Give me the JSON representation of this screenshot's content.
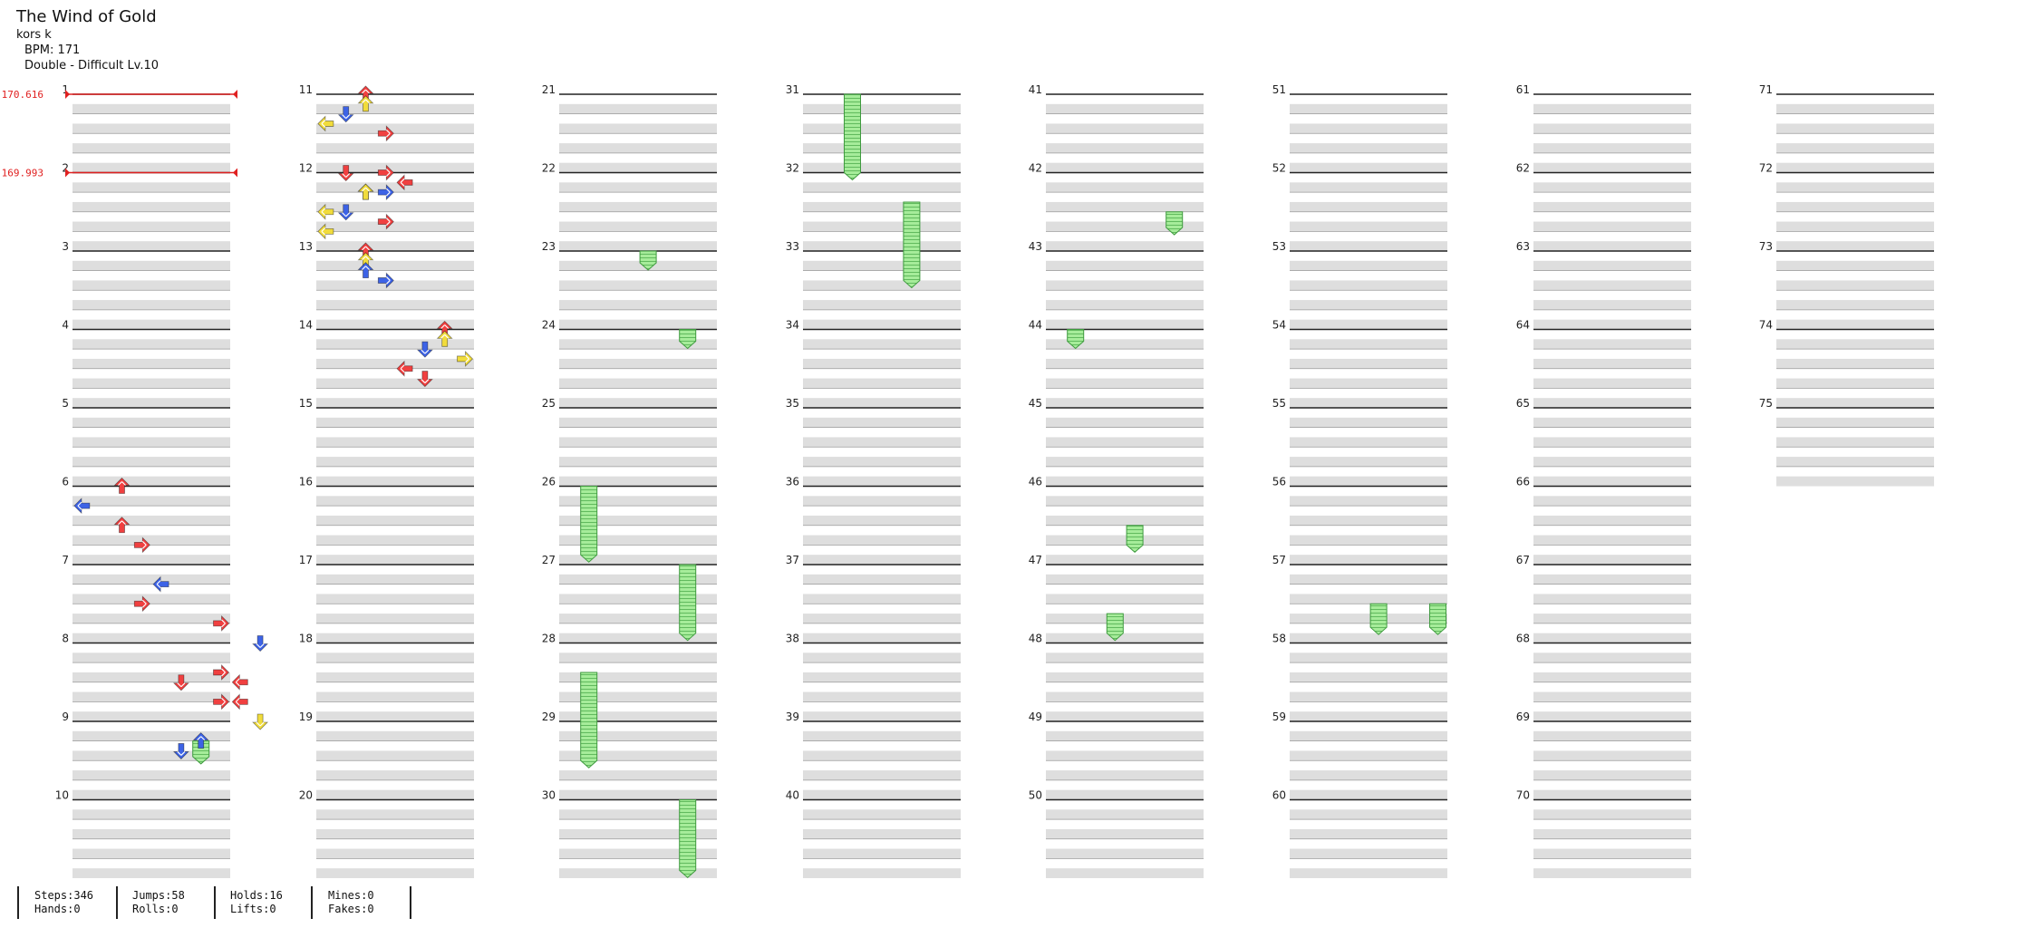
{
  "song": {
    "title": "The Wind of Gold",
    "artist": "kors k",
    "bpm_text": "BPM: 171",
    "difficulty_text": "Double - Difficult Lv.10"
  },
  "bpm_changes": [
    {
      "measure": 1,
      "value": "170.616"
    },
    {
      "measure": 2,
      "value": "169.993"
    }
  ],
  "colors": {
    "red_note": "#f04040",
    "blue_note": "#3d63e6",
    "yellow_note": "#f1dc3c",
    "hold_green": "#8fe08f",
    "bpm_marker": "#e02020",
    "row_gray": "#dedede"
  },
  "icons": [
    "left-arrow-icon",
    "down-arrow-icon",
    "up-arrow-icon",
    "right-arrow-icon",
    "hold-note-icon"
  ],
  "chart": {
    "total_measures": 75,
    "columns": 8,
    "measures_per_column": 10,
    "panels_per_measure": 10,
    "beats_per_measure": 4,
    "notes": [
      {
        "m": 6,
        "b": 0,
        "l": 3,
        "c": "red"
      },
      {
        "m": 6,
        "b": 1,
        "l": 1,
        "c": "blue"
      },
      {
        "m": 6,
        "b": 2,
        "l": 3,
        "c": "red"
      },
      {
        "m": 6,
        "b": 3,
        "l": 4,
        "c": "red"
      },
      {
        "m": 7,
        "b": 1,
        "l": 5,
        "c": "blue"
      },
      {
        "m": 7,
        "b": 2,
        "l": 4,
        "c": "red"
      },
      {
        "m": 7,
        "b": 3,
        "l": 8,
        "c": "red"
      },
      {
        "m": 8,
        "b": 0,
        "l": 10,
        "c": "blue"
      },
      {
        "m": 8,
        "b": 1.5,
        "l": 8,
        "c": "red"
      },
      {
        "m": 8,
        "b": 2,
        "l": 6,
        "c": "red"
      },
      {
        "m": 8,
        "b": 2,
        "l": 9,
        "c": "red"
      },
      {
        "m": 8,
        "b": 3,
        "l": 8,
        "c": "red"
      },
      {
        "m": 8,
        "b": 3,
        "l": 9,
        "c": "red"
      },
      {
        "m": 9,
        "b": 0,
        "l": 10,
        "c": "yellow"
      },
      {
        "m": 9,
        "b": 1,
        "l": 7,
        "c": "blue"
      },
      {
        "m": 9,
        "b": 1.5,
        "l": 6,
        "c": "blue"
      },
      {
        "m": 11,
        "b": 0,
        "l": 3,
        "c": "red"
      },
      {
        "m": 11,
        "b": 0.5,
        "l": 3,
        "c": "yellow"
      },
      {
        "m": 11,
        "b": 1,
        "l": 2,
        "c": "blue"
      },
      {
        "m": 11,
        "b": 1.5,
        "l": 1,
        "c": "yellow"
      },
      {
        "m": 11,
        "b": 2,
        "l": 4,
        "c": "red"
      },
      {
        "m": 11,
        "b": 4,
        "l": 2,
        "c": "red"
      },
      {
        "m": 11,
        "b": 5,
        "l": 3,
        "c": "yellow"
      },
      {
        "m": 11,
        "b": 6,
        "l": 2,
        "c": "blue"
      },
      {
        "m": 11,
        "b": 7,
        "l": 1,
        "c": "yellow"
      },
      {
        "m": 12,
        "b": 0,
        "l": 4,
        "c": "red"
      },
      {
        "m": 12,
        "b": 0.5,
        "l": 5,
        "c": "red"
      },
      {
        "m": 12,
        "b": 1,
        "l": 3,
        "c": "yellow"
      },
      {
        "m": 12,
        "b": 1,
        "l": 4,
        "c": "blue"
      },
      {
        "m": 12,
        "b": 2,
        "l": 1,
        "c": "yellow"
      },
      {
        "m": 12,
        "b": 2.5,
        "l": 4,
        "c": "red"
      },
      {
        "m": 13,
        "b": 0,
        "l": 3,
        "c": "red"
      },
      {
        "m": 13,
        "b": 0.5,
        "l": 3,
        "c": "yellow"
      },
      {
        "m": 13,
        "b": 1,
        "l": 3,
        "c": "blue"
      },
      {
        "m": 13,
        "b": 1.5,
        "l": 4,
        "c": "blue"
      },
      {
        "m": 14,
        "b": 0,
        "l": 7,
        "c": "red"
      },
      {
        "m": 14,
        "b": 0.5,
        "l": 7,
        "c": "yellow"
      },
      {
        "m": 14,
        "b": 1,
        "l": 6,
        "c": "blue"
      },
      {
        "m": 14,
        "b": 1.5,
        "l": 8,
        "c": "yellow"
      },
      {
        "m": 14,
        "b": 2,
        "l": 5,
        "c": "red"
      },
      {
        "m": 14,
        "b": 2.5,
        "l": 6,
        "c": "red"
      }
    ],
    "holds": [
      {
        "m": 9,
        "b": 1,
        "len": 0.8,
        "l": 7
      },
      {
        "m": 23,
        "b": 0,
        "len": 0.6,
        "l": 5
      },
      {
        "m": 24,
        "b": 0,
        "len": 0.6,
        "l": 7
      },
      {
        "m": 26,
        "b": 0,
        "len": 3.5,
        "l": 2
      },
      {
        "m": 27,
        "b": 0,
        "len": 3.5,
        "l": 7
      },
      {
        "m": 28,
        "b": 1.5,
        "len": 4.5,
        "l": 2
      },
      {
        "m": 30,
        "b": 0,
        "len": 3.6,
        "l": 7
      },
      {
        "m": 31,
        "b": 0,
        "len": 4,
        "l": 3
      },
      {
        "m": 32,
        "b": 1.5,
        "len": 4,
        "l": 6
      },
      {
        "m": 42,
        "b": 2,
        "len": 0.8,
        "l": 7
      },
      {
        "m": 44,
        "b": 0,
        "len": 0.6,
        "l": 2
      },
      {
        "m": 46,
        "b": 2,
        "len": 1,
        "l": 5
      },
      {
        "m": 47,
        "b": 2.5,
        "len": 1,
        "l": 4
      },
      {
        "m": 57,
        "b": 2,
        "len": 1.2,
        "l": 5
      },
      {
        "m": 57,
        "b": 2,
        "len": 1.2,
        "l": 8
      }
    ]
  },
  "stats": [
    {
      "top": "Steps:346",
      "bottom": "Hands:0"
    },
    {
      "top": "Jumps:58",
      "bottom": "Rolls:0"
    },
    {
      "top": "Holds:16",
      "bottom": "Lifts:0"
    },
    {
      "top": "Mines:0",
      "bottom": "Fakes:0"
    }
  ]
}
